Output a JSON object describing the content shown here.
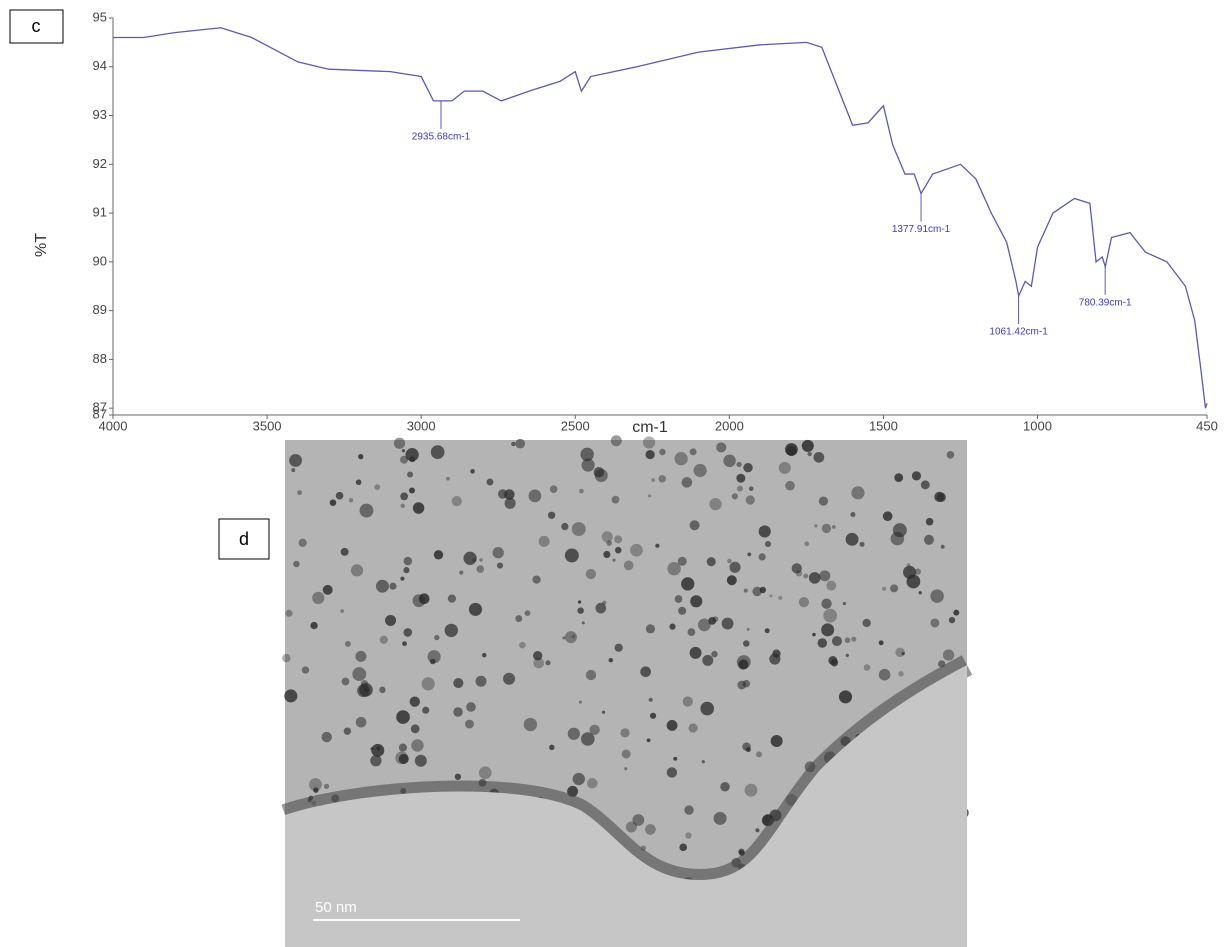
{
  "chart_data": {
    "type": "line",
    "panel_label": "c",
    "ylabel": "%T",
    "xlabel": "cm-1",
    "x": [
      4000,
      3900,
      3800,
      3650,
      3550,
      3400,
      3300,
      3100,
      3000,
      2960,
      2936,
      2900,
      2860,
      2800,
      2770,
      2740,
      2650,
      2550,
      2500,
      2480,
      2450,
      2300,
      2100,
      1900,
      1750,
      1700,
      1650,
      1600,
      1550,
      1500,
      1470,
      1430,
      1400,
      1378,
      1340,
      1250,
      1200,
      1150,
      1100,
      1070,
      1061,
      1040,
      1020,
      1000,
      950,
      880,
      830,
      810,
      790,
      780,
      760,
      700,
      650,
      580,
      520,
      490,
      470,
      455,
      450
    ],
    "series": [
      {
        "color": "#5a5ab4",
        "values": [
          94.6,
          94.6,
          94.7,
          94.8,
          94.6,
          94.1,
          93.95,
          93.9,
          93.8,
          93.3,
          93.3,
          93.3,
          93.5,
          93.5,
          93.4,
          93.3,
          93.5,
          93.7,
          93.9,
          93.5,
          93.8,
          94.0,
          94.3,
          94.45,
          94.5,
          94.4,
          93.6,
          92.8,
          92.85,
          93.2,
          92.4,
          91.8,
          91.8,
          91.4,
          91.8,
          92.0,
          91.7,
          91.0,
          90.4,
          89.6,
          89.3,
          89.6,
          89.5,
          90.3,
          91.0,
          91.3,
          91.2,
          90.0,
          90.1,
          89.9,
          90.5,
          90.6,
          90.2,
          90.0,
          89.5,
          88.8,
          87.8,
          87.0,
          87.1
        ]
      }
    ],
    "annotations": [
      {
        "text": "2935.68cm-1",
        "x": 2935.68,
        "y": 93.3
      },
      {
        "text": "1377.91cm-1",
        "x": 1377.91,
        "y": 91.4
      },
      {
        "text": "1061.42cm-1",
        "x": 1061.42,
        "y": 89.3
      },
      {
        "text": "780.39cm-1",
        "x": 780.39,
        "y": 89.9
      }
    ],
    "xlim": [
      4000,
      450
    ],
    "xticks": [
      4000,
      3500,
      3000,
      2500,
      2000,
      1500,
      1000,
      450
    ],
    "ylim": [
      86.86,
      95
    ],
    "yticks": [
      {
        "value": 86.86,
        "label": "87"
      },
      87,
      88,
      89,
      90,
      91,
      92,
      93,
      94,
      95
    ]
  },
  "image": {
    "panel_label": "d",
    "scale_bar": "50 nm"
  }
}
